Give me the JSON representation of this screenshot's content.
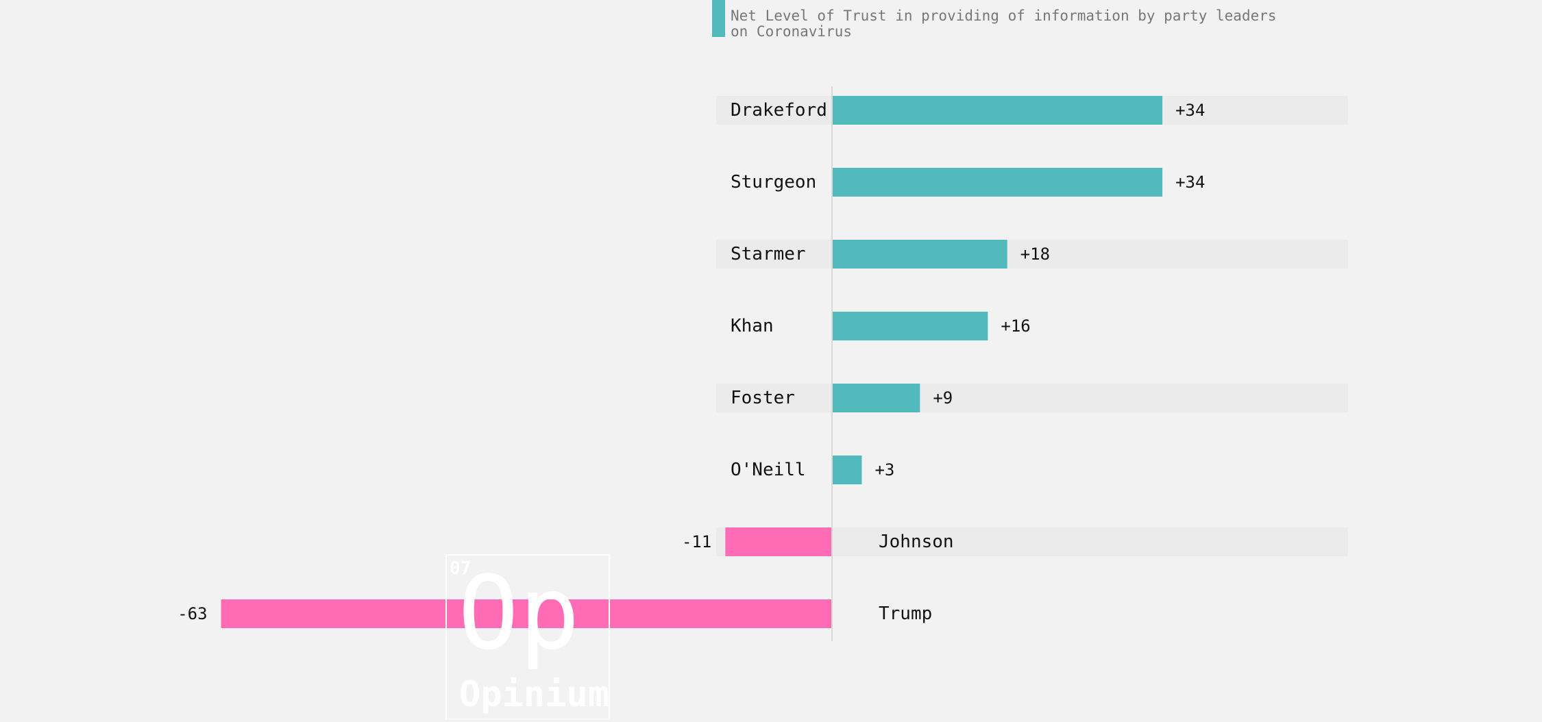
{
  "chart_data": {
    "type": "bar",
    "orientation": "horizontal",
    "title": "Net Level of Trust in providing of information by party leaders on Coronavirus",
    "title_lines": [
      "Net Level of Trust in providing of information by party leaders",
      "on Coronavirus"
    ],
    "categories": [
      "Drakeford",
      "Sturgeon",
      "Starmer",
      "Khan",
      "Foster",
      "O'Neill",
      "Johnson",
      "Trump"
    ],
    "values": [
      34,
      34,
      18,
      16,
      9,
      3,
      -11,
      -63
    ],
    "value_labels": [
      "+34",
      "+34",
      "+18",
      "+16",
      "+9",
      "+3",
      "-11",
      "-63"
    ],
    "legend": {
      "placement": "top",
      "color": "#52b9bd"
    },
    "colors": {
      "positive": "#52b9bd",
      "negative": "#ff6bb5",
      "row_band": "#ebebeb",
      "axis": "#d9d9d9",
      "background": "#f2f2f2"
    },
    "xlim": [
      -63,
      54
    ]
  },
  "watermark": {
    "number": "07",
    "mark": "Op",
    "name": "Opinium"
  }
}
